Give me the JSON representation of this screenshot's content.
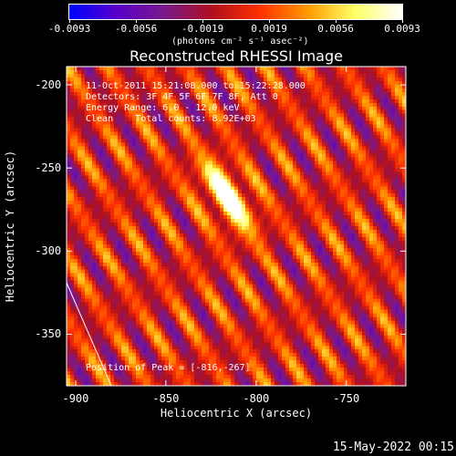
{
  "colorbar": {
    "tick_labels": [
      "-0.0093",
      "-0.0056",
      "-0.0019",
      "0.0019",
      "0.0056",
      "0.0093"
    ],
    "unit_label": "(photons cm⁻² s⁻¹ asec⁻²)",
    "range": [
      -0.0093,
      0.0093
    ],
    "colors": [
      "#0000ff",
      "#5a00c8",
      "#7a1a8c",
      "#b01020",
      "#ff3000",
      "#ff9a00",
      "#ffff66",
      "#ffffff"
    ]
  },
  "chart_data": {
    "type": "heatmap",
    "title": "Reconstructed RHESSI Image",
    "xlabel": "Heliocentric X (arcsec)",
    "ylabel": "Heliocentric Y (arcsec)",
    "xlim": [
      -905,
      -717
    ],
    "ylim": [
      -381,
      -189
    ],
    "x_ticks": [
      "-900",
      "-850",
      "-800",
      "-750"
    ],
    "x_tick_values": [
      -900,
      -850,
      -800,
      -750
    ],
    "y_ticks": [
      "-200",
      "-250",
      "-300",
      "-350"
    ],
    "y_tick_values": [
      -200,
      -250,
      -300,
      -350
    ],
    "annotations": {
      "time": "11-Oct-2011 15:21:08.000 to 15:22:28.000",
      "detectors": "Detectors: 3F 4F 5F 6F 7F 8F, Att 0",
      "energy": "Energy Range: 6.0 - 12.0 keV",
      "clean": "Clean    Total counts: 8.92E+03",
      "peak": "Position of Peak = [-816,-267]"
    },
    "peak_position": [
      -816,
      -267
    ]
  },
  "footer": {
    "timestamp": "15-May-2022 00:15"
  }
}
